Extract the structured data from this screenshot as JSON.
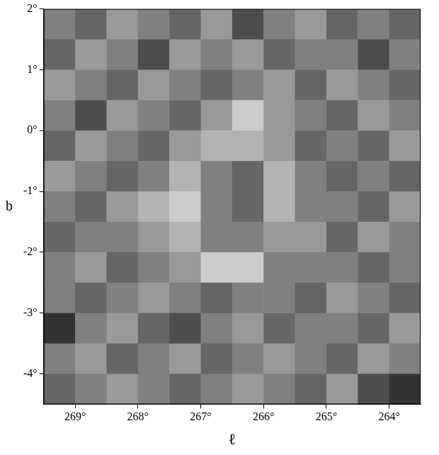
{
  "chart_data": {
    "type": "heatmap",
    "x_label": "ℓ",
    "y_label": "b",
    "xlim": [
      269.5,
      263.5
    ],
    "ylim": [
      -4.5,
      2
    ],
    "xticks": [
      {
        "value": 269,
        "label": "269°"
      },
      {
        "value": 268,
        "label": "268°"
      },
      {
        "value": 267,
        "label": "267°"
      },
      {
        "value": 266,
        "label": "266°"
      },
      {
        "value": 265,
        "label": "265°"
      },
      {
        "value": 264,
        "label": "264°"
      }
    ],
    "yticks": [
      {
        "value": 2,
        "label": "2°"
      },
      {
        "value": 1,
        "label": "1°"
      },
      {
        "value": 0,
        "label": "0°"
      },
      {
        "value": -1,
        "label": "-1°"
      },
      {
        "value": -2,
        "label": "-2°"
      },
      {
        "value": -3,
        "label": "-3°"
      },
      {
        "value": -4,
        "label": "-4°"
      }
    ],
    "grid": false,
    "x": [
      269.25,
      268.75,
      268.25,
      267.75,
      267.25,
      266.75,
      266.25,
      265.75,
      265.25,
      264.75,
      264.25,
      263.75
    ],
    "y": [
      1.75,
      1.25,
      0.75,
      0.25,
      -0.25,
      -0.75,
      -1.25,
      -1.75,
      -2.25,
      -2.75,
      -3.25,
      -3.75,
      -4.25
    ],
    "cell_range": [
      0,
      10
    ],
    "cells": [
      [
        5,
        4,
        6,
        5,
        4,
        6,
        3,
        5,
        6,
        4,
        5,
        4
      ],
      [
        4,
        6,
        5,
        3,
        6,
        5,
        6,
        4,
        5,
        5,
        3,
        5
      ],
      [
        6,
        5,
        4,
        6,
        5,
        4,
        5,
        6,
        4,
        6,
        5,
        4
      ],
      [
        5,
        3,
        6,
        5,
        4,
        6,
        8,
        6,
        5,
        4,
        6,
        5
      ],
      [
        4,
        6,
        5,
        4,
        6,
        7,
        7,
        6,
        4,
        5,
        4,
        6
      ],
      [
        6,
        5,
        4,
        5,
        7,
        5,
        4,
        7,
        5,
        4,
        5,
        4
      ],
      [
        5,
        4,
        6,
        7,
        8,
        5,
        4,
        7,
        5,
        5,
        4,
        6
      ],
      [
        4,
        5,
        5,
        6,
        7,
        5,
        5,
        6,
        6,
        4,
        6,
        5
      ],
      [
        5,
        6,
        4,
        5,
        6,
        8,
        8,
        5,
        5,
        5,
        4,
        5
      ],
      [
        5,
        4,
        5,
        6,
        5,
        4,
        5,
        5,
        4,
        6,
        5,
        4
      ],
      [
        2,
        5,
        6,
        4,
        3,
        5,
        6,
        4,
        5,
        5,
        4,
        6
      ],
      [
        5,
        6,
        4,
        5,
        6,
        4,
        5,
        6,
        5,
        4,
        6,
        5
      ],
      [
        4,
        5,
        6,
        5,
        4,
        5,
        6,
        5,
        4,
        6,
        3,
        2
      ]
    ]
  }
}
